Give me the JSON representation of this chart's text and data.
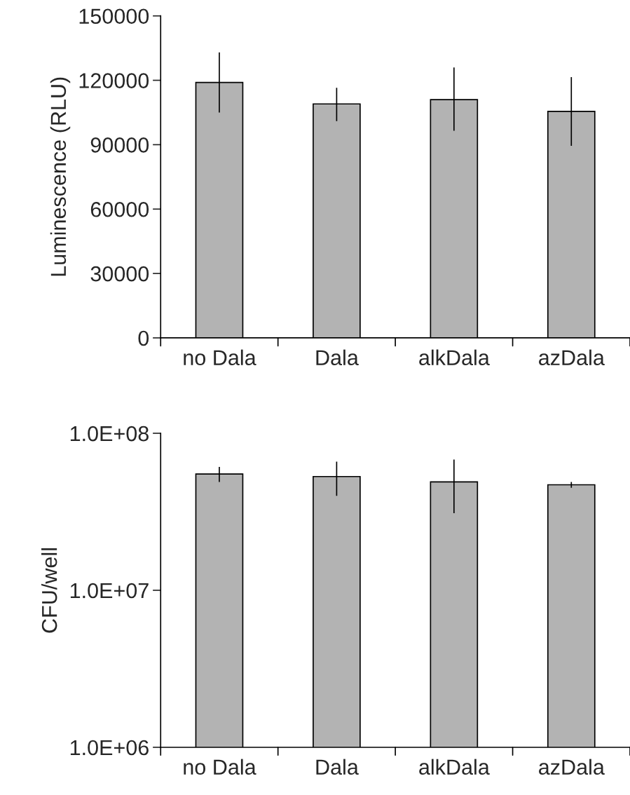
{
  "chart_data": [
    {
      "type": "bar",
      "ylabel": "Luminescence (RLU)",
      "categories": [
        "no Dala",
        "Dala",
        "alkDala",
        "azDala"
      ],
      "series": [
        {
          "color": "#b3b3b3",
          "values": [
            119000,
            109000,
            111000,
            105500
          ],
          "errors": [
            [
              105000,
              133000
            ],
            [
              101000,
              116500
            ],
            [
              96500,
              126000
            ],
            [
              89500,
              121500
            ]
          ]
        }
      ],
      "ylim": [
        0,
        150000
      ],
      "yticks": [
        0,
        30000,
        60000,
        90000,
        120000,
        150000
      ],
      "grid": false
    },
    {
      "type": "bar",
      "ylabel": "CFU/well",
      "categories": [
        "no Dala",
        "Dala",
        "alkDala",
        "azDala"
      ],
      "log": true,
      "series": [
        {
          "color": "#b3b3b3",
          "values": [
            55000000,
            53000000,
            49000000,
            47000000
          ],
          "errors": [
            [
              49000000,
              61000000
            ],
            [
              40000000,
              66000000
            ],
            [
              31000000,
              68000000
            ],
            [
              45000000,
              49000000
            ]
          ]
        }
      ],
      "ylim": [
        1000000,
        100000000
      ],
      "yticks": [
        {
          "value": 1000000,
          "label": "1.0E+06"
        },
        {
          "value": 10000000,
          "label": "1.0E+07"
        },
        {
          "value": 100000000,
          "label": "1.0E+08"
        }
      ],
      "grid": false
    }
  ]
}
